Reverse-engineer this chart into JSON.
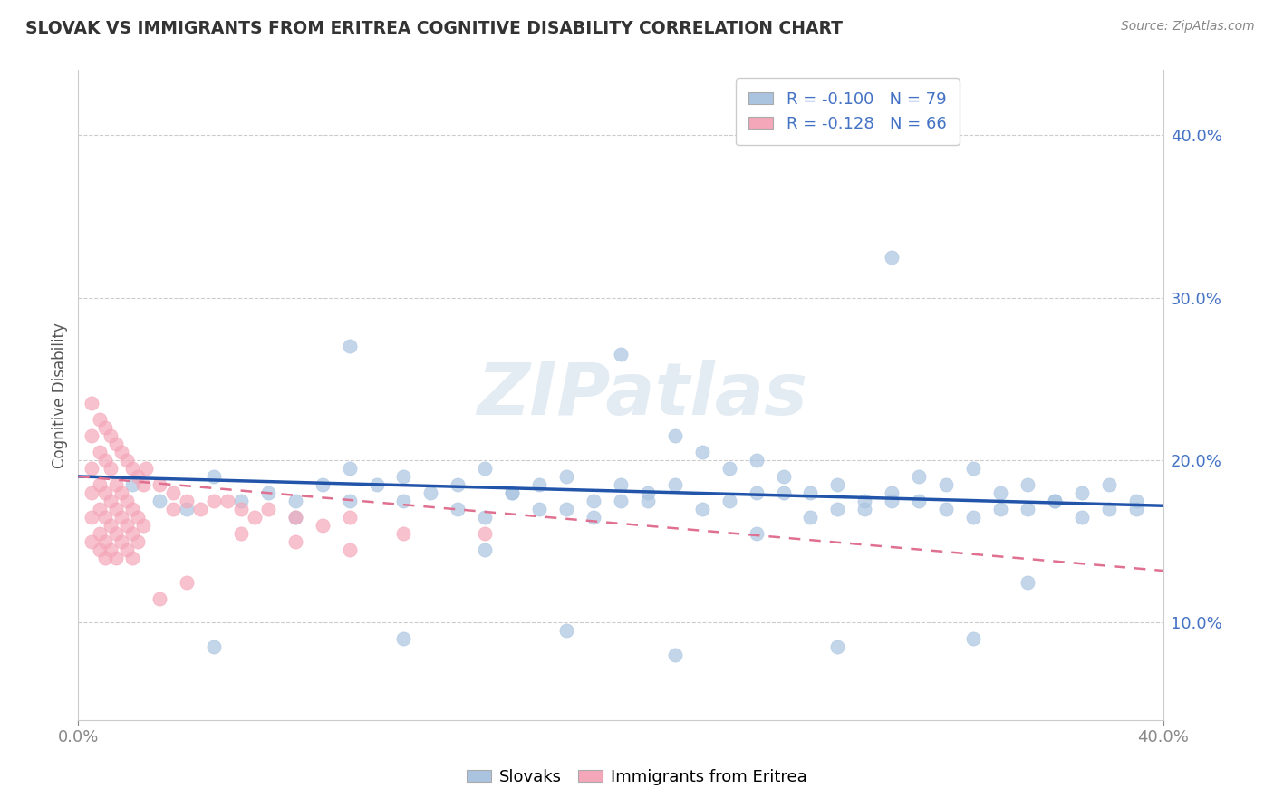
{
  "title": "SLOVAK VS IMMIGRANTS FROM ERITREA COGNITIVE DISABILITY CORRELATION CHART",
  "source": "Source: ZipAtlas.com",
  "ylabel": "Cognitive Disability",
  "xlim": [
    0.0,
    0.4
  ],
  "ylim": [
    0.04,
    0.44
  ],
  "yticks": [
    0.1,
    0.2,
    0.3,
    0.4
  ],
  "ytick_labels": [
    "10.0%",
    "20.0%",
    "30.0%",
    "40.0%"
  ],
  "xtick_labels": [
    "0.0%",
    "40.0%"
  ],
  "legend_entry1": "R = -0.100   N = 79",
  "legend_entry2": "R = -0.128   N = 66",
  "slovak_color": "#aac4e0",
  "eritrea_color": "#f4a7b9",
  "slovak_line_color": "#2255aa",
  "eritrea_line_color": "#e07090",
  "watermark": "ZIPatlas",
  "bottom_legend_1": "Slovaks",
  "bottom_legend_2": "Immigrants from Eritrea",
  "slovak_x": [
    0.02,
    0.03,
    0.05,
    0.07,
    0.08,
    0.09,
    0.1,
    0.11,
    0.12,
    0.13,
    0.14,
    0.15,
    0.16,
    0.17,
    0.18,
    0.19,
    0.2,
    0.21,
    0.22,
    0.23,
    0.24,
    0.25,
    0.26,
    0.27,
    0.28,
    0.29,
    0.3,
    0.31,
    0.32,
    0.33,
    0.34,
    0.35,
    0.36,
    0.37,
    0.38,
    0.39,
    0.04,
    0.06,
    0.08,
    0.1,
    0.12,
    0.14,
    0.16,
    0.18,
    0.2,
    0.22,
    0.24,
    0.26,
    0.28,
    0.3,
    0.32,
    0.34,
    0.36,
    0.38,
    0.15,
    0.17,
    0.19,
    0.21,
    0.23,
    0.25,
    0.27,
    0.29,
    0.31,
    0.33,
    0.35,
    0.37,
    0.39,
    0.1,
    0.2,
    0.3,
    0.15,
    0.25,
    0.35,
    0.05,
    0.12,
    0.18,
    0.22,
    0.28,
    0.33
  ],
  "slovak_y": [
    0.185,
    0.175,
    0.19,
    0.18,
    0.175,
    0.185,
    0.195,
    0.185,
    0.19,
    0.18,
    0.185,
    0.195,
    0.18,
    0.185,
    0.19,
    0.175,
    0.185,
    0.18,
    0.215,
    0.205,
    0.195,
    0.2,
    0.19,
    0.18,
    0.185,
    0.175,
    0.18,
    0.19,
    0.185,
    0.195,
    0.18,
    0.185,
    0.175,
    0.18,
    0.185,
    0.175,
    0.17,
    0.175,
    0.165,
    0.175,
    0.175,
    0.17,
    0.18,
    0.17,
    0.175,
    0.185,
    0.175,
    0.18,
    0.17,
    0.175,
    0.17,
    0.17,
    0.175,
    0.17,
    0.165,
    0.17,
    0.165,
    0.175,
    0.17,
    0.18,
    0.165,
    0.17,
    0.175,
    0.165,
    0.17,
    0.165,
    0.17,
    0.27,
    0.265,
    0.325,
    0.145,
    0.155,
    0.125,
    0.085,
    0.09,
    0.095,
    0.08,
    0.085,
    0.09
  ],
  "eritrea_x": [
    0.005,
    0.008,
    0.01,
    0.012,
    0.014,
    0.016,
    0.018,
    0.02,
    0.022,
    0.024,
    0.005,
    0.008,
    0.01,
    0.012,
    0.014,
    0.016,
    0.018,
    0.02,
    0.022,
    0.024,
    0.005,
    0.008,
    0.01,
    0.012,
    0.014,
    0.016,
    0.018,
    0.02,
    0.022,
    0.005,
    0.008,
    0.01,
    0.012,
    0.014,
    0.016,
    0.018,
    0.02,
    0.005,
    0.008,
    0.01,
    0.012,
    0.014,
    0.005,
    0.008,
    0.01,
    0.025,
    0.03,
    0.035,
    0.04,
    0.045,
    0.05,
    0.055,
    0.06,
    0.065,
    0.07,
    0.08,
    0.09,
    0.1,
    0.12,
    0.15,
    0.03,
    0.035,
    0.04,
    0.06,
    0.08,
    0.1
  ],
  "eritrea_y": [
    0.235,
    0.225,
    0.22,
    0.215,
    0.21,
    0.205,
    0.2,
    0.195,
    0.19,
    0.185,
    0.215,
    0.205,
    0.2,
    0.195,
    0.185,
    0.18,
    0.175,
    0.17,
    0.165,
    0.16,
    0.195,
    0.185,
    0.18,
    0.175,
    0.17,
    0.165,
    0.16,
    0.155,
    0.15,
    0.18,
    0.17,
    0.165,
    0.16,
    0.155,
    0.15,
    0.145,
    0.14,
    0.165,
    0.155,
    0.15,
    0.145,
    0.14,
    0.15,
    0.145,
    0.14,
    0.195,
    0.185,
    0.18,
    0.175,
    0.17,
    0.175,
    0.175,
    0.17,
    0.165,
    0.17,
    0.165,
    0.16,
    0.165,
    0.155,
    0.155,
    0.115,
    0.17,
    0.125,
    0.155,
    0.15,
    0.145
  ]
}
